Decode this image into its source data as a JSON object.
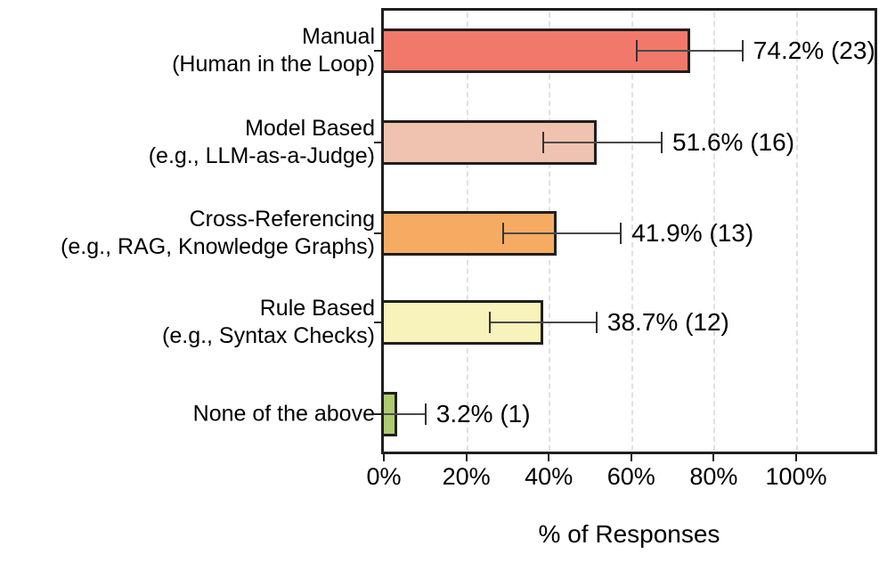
{
  "chart_data": {
    "type": "bar",
    "orientation": "horizontal",
    "title": "",
    "xlabel": "% of Responses",
    "ylabel": "",
    "xlim": [
      0,
      120
    ],
    "xtick_labels": [
      "0%",
      "20%",
      "40%",
      "60%",
      "80%",
      "100%"
    ],
    "xtick_values": [
      0,
      20,
      40,
      60,
      80,
      100
    ],
    "grid": {
      "axis": "x",
      "style": "dashed",
      "color": "#e0e0e0"
    },
    "legend": "none",
    "categories": [
      {
        "label": "Manual",
        "sublabel": "(Human in the Loop)",
        "value_pct": 74.2,
        "count": 23,
        "annotation": "74.2% (23)",
        "err_low_pct": 61.3,
        "err_high_pct": 87.0,
        "color": "#F1796B"
      },
      {
        "label": "Model Based",
        "sublabel": "(e.g., LLM-as-a-Judge)",
        "value_pct": 51.6,
        "count": 16,
        "annotation": "51.6% (16)",
        "err_low_pct": 38.7,
        "err_high_pct": 67.4,
        "color": "#EFC3AF"
      },
      {
        "label": "Cross-Referencing",
        "sublabel": "(e.g., RAG, Knowledge Graphs)",
        "value_pct": 41.9,
        "count": 13,
        "annotation": "41.9% (13)",
        "err_low_pct": 29.0,
        "err_high_pct": 57.5,
        "color": "#F6AB62"
      },
      {
        "label": "Rule Based",
        "sublabel": "(e.g., Syntax Checks)",
        "value_pct": 38.7,
        "count": 12,
        "annotation": "38.7% (12)",
        "err_low_pct": 25.8,
        "err_high_pct": 51.6,
        "color": "#F8F2BB"
      },
      {
        "label": "None of the above",
        "sublabel": "",
        "value_pct": 3.2,
        "count": 1,
        "annotation": "3.2% (1)",
        "err_low_pct": 0,
        "err_high_pct": 10.1,
        "color": "#AECB70"
      }
    ],
    "bar_border_color": "#1f1f1f",
    "error_bar_color": "#4a4a4a",
    "axis_color": "#1f1f1f",
    "text_color": "#000000",
    "background_color": "#ffffff"
  }
}
